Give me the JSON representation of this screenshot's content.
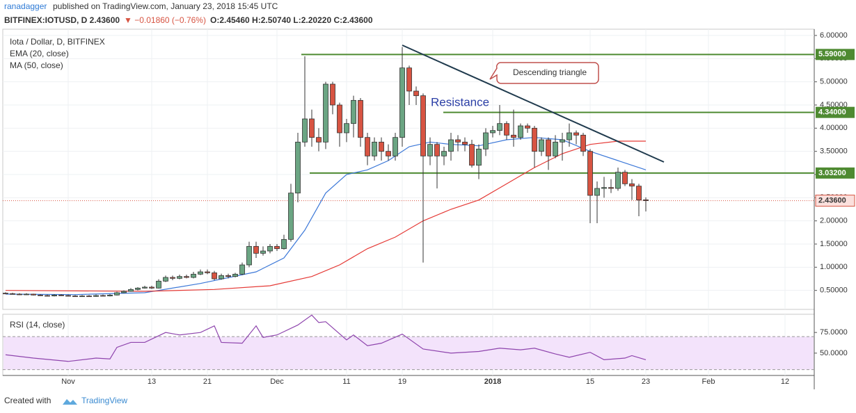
{
  "header": {
    "author": "ranadagger",
    "published": "published on TradingView.com, January 23, 2018 15:45 UTC",
    "quote": "BITFINEX:IOTUSD, D 2.43600",
    "change": "▼ −0.01860 (−0.76%)",
    "ohlc": "O:2.45460 H:2.50740 L:2.20220 C:2.43600"
  },
  "footer": {
    "created": "Created with",
    "brand": "TradingView"
  },
  "chart_data": {
    "type": "candlestick",
    "title": "Iota / Dollar, D, BITFINEX",
    "x": [
      0,
      1,
      2,
      3,
      4,
      5,
      6,
      7,
      8,
      9,
      10,
      11,
      12,
      13,
      14,
      15,
      16,
      17,
      18,
      19,
      20,
      21,
      22,
      23,
      24,
      25,
      26,
      27,
      28,
      29,
      30,
      31,
      32,
      33,
      34,
      35,
      36,
      37,
      38,
      39,
      40,
      41,
      42,
      43,
      44,
      45,
      46,
      47,
      48,
      49,
      50,
      51,
      52,
      53,
      54,
      55,
      56,
      57,
      58,
      59,
      60,
      61,
      62,
      63,
      64,
      65,
      66,
      67,
      68,
      69,
      70,
      71,
      72,
      73,
      74,
      75,
      76,
      77,
      78,
      79,
      80,
      81,
      82,
      83,
      84,
      85,
      86,
      87,
      88,
      89,
      90,
      91,
      92
    ],
    "open": [
      0.44,
      0.43,
      0.42,
      0.41,
      0.42,
      0.4,
      0.39,
      0.38,
      0.4,
      0.39,
      0.38,
      0.37,
      0.38,
      0.37,
      0.39,
      0.38,
      0.4,
      0.45,
      0.48,
      0.52,
      0.55,
      0.57,
      0.55,
      0.7,
      0.78,
      0.76,
      0.8,
      0.78,
      0.85,
      0.9,
      0.88,
      0.75,
      0.82,
      0.8,
      0.85,
      1.05,
      1.45,
      1.3,
      1.35,
      1.45,
      1.4,
      1.6,
      2.6,
      3.7,
      4.2,
      3.8,
      3.7,
      4.95,
      4.5,
      3.9,
      4.1,
      4.6,
      3.8,
      3.4,
      3.7,
      3.5,
      3.4,
      3.8,
      5.3,
      4.8,
      4.7,
      3.4,
      3.65,
      3.4,
      3.5,
      3.75,
      3.7,
      3.65,
      3.2,
      3.55,
      3.9,
      3.95,
      4.1,
      3.85,
      3.8,
      4.05,
      4.0,
      3.5,
      3.75,
      3.4,
      3.7,
      3.75,
      3.9,
      3.85,
      3.5,
      2.55,
      2.7,
      2.72,
      2.7,
      3.05,
      2.8,
      2.75,
      2.4546
    ],
    "high": [
      0.46,
      0.45,
      0.44,
      0.44,
      0.43,
      0.42,
      0.41,
      0.42,
      0.42,
      0.41,
      0.4,
      0.4,
      0.4,
      0.41,
      0.41,
      0.42,
      0.47,
      0.5,
      0.55,
      0.57,
      0.6,
      0.6,
      0.74,
      0.82,
      0.82,
      0.84,
      0.84,
      0.9,
      0.95,
      0.95,
      0.92,
      0.86,
      0.86,
      0.88,
      1.1,
      1.55,
      1.55,
      1.45,
      1.5,
      1.5,
      1.7,
      2.8,
      3.9,
      5.55,
      4.4,
      4.0,
      5.0,
      5.0,
      4.55,
      4.2,
      4.7,
      4.65,
      3.9,
      3.8,
      3.8,
      3.65,
      3.9,
      5.75,
      5.35,
      4.9,
      4.75,
      3.8,
      3.7,
      3.6,
      3.9,
      3.85,
      3.8,
      3.75,
      3.65,
      4.0,
      4.05,
      4.5,
      4.15,
      4.4,
      4.1,
      4.1,
      4.05,
      3.8,
      3.8,
      3.85,
      3.9,
      4.1,
      3.95,
      3.9,
      3.55,
      2.85,
      2.95,
      2.9,
      3.15,
      3.1,
      2.9,
      2.8,
      2.5074
    ],
    "low": [
      0.42,
      0.41,
      0.4,
      0.4,
      0.39,
      0.38,
      0.37,
      0.37,
      0.38,
      0.37,
      0.36,
      0.36,
      0.36,
      0.36,
      0.37,
      0.37,
      0.39,
      0.44,
      0.47,
      0.5,
      0.54,
      0.53,
      0.54,
      0.68,
      0.72,
      0.74,
      0.76,
      0.76,
      0.83,
      0.85,
      0.72,
      0.73,
      0.76,
      0.78,
      0.83,
      1.0,
      1.2,
      1.25,
      1.3,
      1.35,
      1.38,
      1.55,
      2.4,
      3.6,
      3.6,
      3.5,
      3.55,
      4.3,
      3.6,
      3.7,
      3.8,
      3.6,
      3.2,
      3.3,
      3.3,
      3.3,
      3.3,
      3.6,
      4.5,
      4.5,
      1.1,
      3.2,
      2.7,
      3.2,
      3.3,
      3.5,
      3.5,
      3.15,
      2.9,
      3.4,
      3.8,
      3.85,
      3.75,
      3.6,
      3.75,
      3.9,
      3.15,
      3.4,
      3.1,
      3.35,
      3.3,
      3.6,
      3.65,
      3.4,
      1.95,
      1.95,
      2.5,
      2.6,
      2.65,
      2.75,
      2.45,
      2.1,
      2.2022
    ],
    "close": [
      0.43,
      0.42,
      0.41,
      0.42,
      0.4,
      0.39,
      0.38,
      0.4,
      0.39,
      0.38,
      0.37,
      0.38,
      0.37,
      0.39,
      0.38,
      0.4,
      0.45,
      0.48,
      0.52,
      0.55,
      0.57,
      0.55,
      0.7,
      0.78,
      0.76,
      0.8,
      0.78,
      0.85,
      0.9,
      0.88,
      0.75,
      0.82,
      0.8,
      0.85,
      1.05,
      1.45,
      1.3,
      1.35,
      1.45,
      1.4,
      1.6,
      2.6,
      3.7,
      4.2,
      3.8,
      3.7,
      4.95,
      4.5,
      3.9,
      4.1,
      4.6,
      3.8,
      3.4,
      3.7,
      3.5,
      3.4,
      3.8,
      5.3,
      4.8,
      4.7,
      3.4,
      3.65,
      3.4,
      3.5,
      3.75,
      3.7,
      3.65,
      3.2,
      3.55,
      3.9,
      3.95,
      4.1,
      3.85,
      3.8,
      4.05,
      4.0,
      3.5,
      3.75,
      3.4,
      3.7,
      3.75,
      3.9,
      3.85,
      3.5,
      2.55,
      2.7,
      2.72,
      2.7,
      3.05,
      2.8,
      2.75,
      2.45,
      2.436
    ],
    "up_color": "#6ba583",
    "down_color": "#d75442",
    "lines": [
      {
        "name": "EMA (20, close)",
        "color": "#3c78d8",
        "x": [
          0,
          10,
          20,
          28,
          36,
          40,
          43,
          46,
          49,
          52,
          55,
          58,
          61,
          64,
          68,
          72,
          76,
          80,
          84,
          88,
          92
        ],
        "values": [
          0.42,
          0.41,
          0.45,
          0.65,
          0.9,
          1.2,
          1.8,
          2.6,
          3.0,
          3.1,
          3.3,
          3.6,
          3.7,
          3.65,
          3.62,
          3.75,
          3.8,
          3.75,
          3.5,
          3.3,
          3.1
        ]
      },
      {
        "name": "MA (50, close)",
        "color": "#e53935",
        "x": [
          0,
          20,
          30,
          38,
          44,
          48,
          52,
          56,
          60,
          64,
          68,
          72,
          76,
          80,
          84,
          88,
          92
        ],
        "values": [
          0.5,
          0.48,
          0.52,
          0.6,
          0.8,
          1.05,
          1.4,
          1.65,
          2.0,
          2.25,
          2.45,
          2.8,
          3.15,
          3.45,
          3.65,
          3.72,
          3.72
        ]
      }
    ],
    "levels": [
      {
        "value": 5.59,
        "label": "5.59000"
      },
      {
        "value": 4.34,
        "label": "4.34000"
      },
      {
        "value": 3.032,
        "label": "3.03200"
      }
    ],
    "last": {
      "value": 2.436,
      "label": "2.43600"
    },
    "annotations": {
      "triangle": "Descending triangle",
      "resistance": "Resistance"
    },
    "ylim": [
      0.09,
      6.135
    ],
    "yticks": [
      {
        "value": 0.5,
        "label": "0.50000"
      },
      {
        "value": 1,
        "label": "1.00000"
      },
      {
        "value": 1.5,
        "label": "1.50000"
      },
      {
        "value": 2,
        "label": "2.00000"
      },
      {
        "value": 2.5,
        "label": "2.50000"
      },
      {
        "value": 3,
        "label": "3.00000"
      },
      {
        "value": 3.5,
        "label": "3.50000"
      },
      {
        "value": 4,
        "label": "4.00000"
      },
      {
        "value": 4.5,
        "label": "4.50000"
      },
      {
        "value": 5,
        "label": "5.00000"
      },
      {
        "value": 5.5,
        "label": "5.50000"
      },
      {
        "value": 6,
        "label": "6.00000"
      }
    ],
    "xlim": [
      -0.4,
      116.2
    ],
    "xticks": [
      {
        "value": 9,
        "label": "Nov"
      },
      {
        "value": 21,
        "label": "13"
      },
      {
        "value": 29,
        "label": "21"
      },
      {
        "value": 39,
        "label": "Dec"
      },
      {
        "value": 49,
        "label": "11"
      },
      {
        "value": 57,
        "label": "19"
      },
      {
        "value": 70,
        "label": "2018"
      },
      {
        "value": 84,
        "label": "15"
      },
      {
        "value": 92,
        "label": "23"
      },
      {
        "value": 101,
        "label": "Feb"
      },
      {
        "value": 112,
        "label": "12"
      }
    ],
    "rsi": {
      "name": "RSI (14, close)",
      "color": "#8e44ad",
      "band_color": "#f3e3fb",
      "x": [
        0,
        4,
        9,
        13,
        15,
        16,
        18,
        20,
        23,
        25,
        28,
        30,
        31,
        34,
        36,
        37,
        39,
        42,
        44,
        45,
        46,
        49,
        50,
        52,
        54,
        57,
        60,
        64,
        68,
        71,
        74,
        76,
        79,
        81,
        84,
        86,
        89,
        90,
        92
      ],
      "values": [
        48,
        44,
        40,
        44,
        43,
        57,
        63,
        63,
        75,
        72,
        75,
        83,
        63,
        62,
        83,
        69,
        72,
        84,
        96,
        87,
        88,
        66,
        72,
        59,
        62,
        73,
        55,
        50,
        52,
        56,
        54,
        56,
        49,
        45,
        51,
        42,
        44,
        47,
        42
      ],
      "band": [
        30,
        70
      ],
      "ylim": [
        23,
        97
      ],
      "yticks": [
        {
          "value": 50,
          "label": "50.0000"
        },
        {
          "value": 75,
          "label": "75.0000"
        }
      ]
    }
  }
}
